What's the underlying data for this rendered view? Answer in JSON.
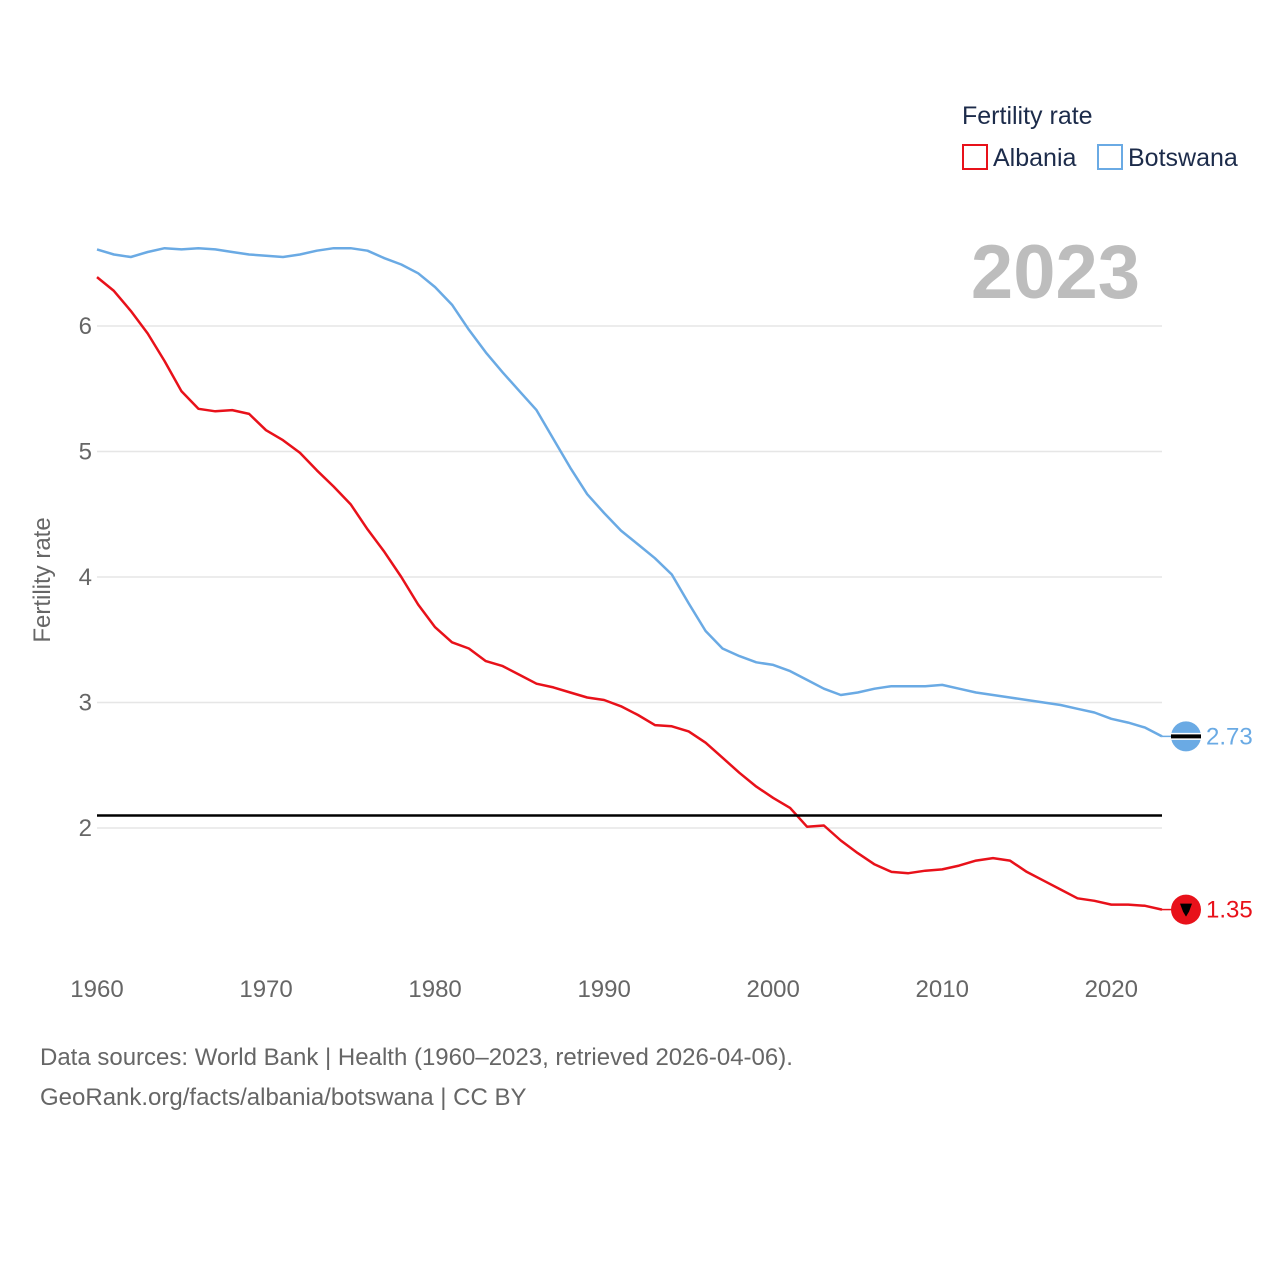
{
  "chart_data": {
    "type": "line",
    "title": "Fertility rate",
    "year_label": "2023",
    "xlabel": "",
    "ylabel": "Fertility rate",
    "xlim": [
      1960,
      2023
    ],
    "ylim": [
      1.0,
      6.9
    ],
    "x_ticks": [
      1960,
      1970,
      1980,
      1990,
      2000,
      2010,
      2020
    ],
    "y_ticks": [
      2,
      3,
      4,
      5,
      6
    ],
    "grid": true,
    "legend_position": "top-right",
    "reference_line": {
      "value": 2.1,
      "color": "#000000"
    },
    "x": [
      1960,
      1961,
      1962,
      1963,
      1964,
      1965,
      1966,
      1967,
      1968,
      1969,
      1970,
      1971,
      1972,
      1973,
      1974,
      1975,
      1976,
      1977,
      1978,
      1979,
      1980,
      1981,
      1982,
      1983,
      1984,
      1985,
      1986,
      1987,
      1988,
      1989,
      1990,
      1991,
      1992,
      1993,
      1994,
      1995,
      1996,
      1997,
      1998,
      1999,
      2000,
      2001,
      2002,
      2003,
      2004,
      2005,
      2006,
      2007,
      2008,
      2009,
      2010,
      2011,
      2012,
      2013,
      2014,
      2015,
      2016,
      2017,
      2018,
      2019,
      2020,
      2021,
      2022,
      2023
    ],
    "series": [
      {
        "name": "Albania",
        "color": "#e8111a",
        "end_label": "1.35",
        "values": [
          6.39,
          6.28,
          6.12,
          5.94,
          5.72,
          5.48,
          5.34,
          5.32,
          5.33,
          5.3,
          5.17,
          5.09,
          4.99,
          4.85,
          4.72,
          4.58,
          4.38,
          4.2,
          4.0,
          3.78,
          3.6,
          3.48,
          3.43,
          3.33,
          3.29,
          3.22,
          3.15,
          3.12,
          3.08,
          3.04,
          3.02,
          2.97,
          2.9,
          2.82,
          2.81,
          2.77,
          2.68,
          2.56,
          2.44,
          2.33,
          2.24,
          2.16,
          2.01,
          2.02,
          1.9,
          1.8,
          1.71,
          1.65,
          1.64,
          1.66,
          1.67,
          1.7,
          1.74,
          1.76,
          1.74,
          1.65,
          1.58,
          1.51,
          1.44,
          1.42,
          1.39,
          1.39,
          1.38,
          1.35
        ]
      },
      {
        "name": "Botswana",
        "color": "#6aaae4",
        "end_label": "2.73",
        "values": [
          6.61,
          6.57,
          6.55,
          6.59,
          6.62,
          6.61,
          6.62,
          6.61,
          6.59,
          6.57,
          6.56,
          6.55,
          6.57,
          6.6,
          6.62,
          6.62,
          6.6,
          6.54,
          6.49,
          6.42,
          6.31,
          6.17,
          5.97,
          5.79,
          5.63,
          5.48,
          5.33,
          5.1,
          4.87,
          4.66,
          4.51,
          4.37,
          4.26,
          4.15,
          4.02,
          3.79,
          3.57,
          3.43,
          3.37,
          3.32,
          3.3,
          3.25,
          3.18,
          3.11,
          3.06,
          3.08,
          3.11,
          3.13,
          3.13,
          3.13,
          3.14,
          3.11,
          3.08,
          3.06,
          3.04,
          3.02,
          3.0,
          2.98,
          2.95,
          2.92,
          2.87,
          2.84,
          2.8,
          2.73
        ]
      }
    ]
  },
  "source": {
    "line1": "Data sources: World Bank | Health (1960–2023, retrieved 2026-04-06).",
    "line2": "GeoRank.org/facts/albania/botswana | CC BY"
  }
}
